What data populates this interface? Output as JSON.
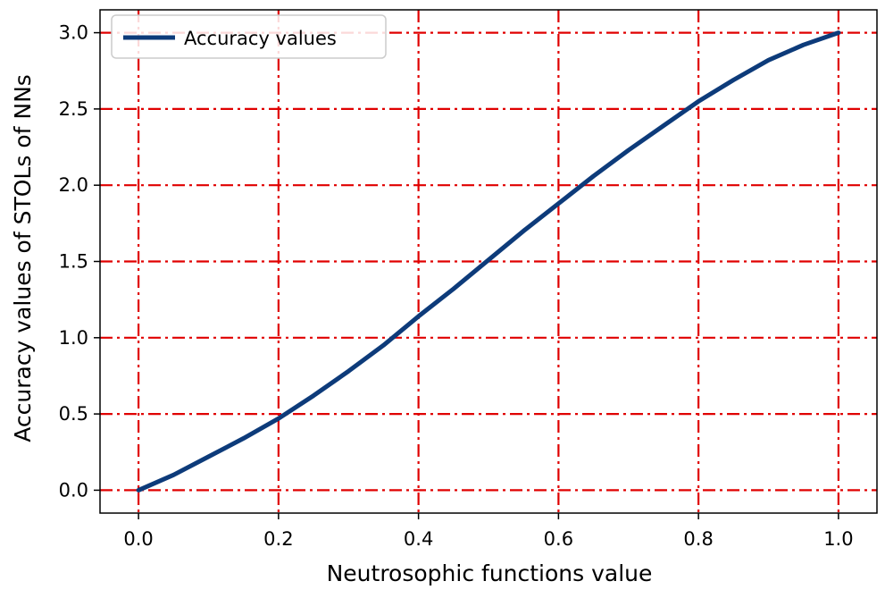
{
  "chart_data": {
    "type": "line",
    "title": "",
    "xlabel": "Neutrosophic functions value",
    "ylabel": "Accuracy values of STOLs of NNs",
    "xlim": [
      -0.055,
      1.055
    ],
    "ylim": [
      -0.15,
      3.15
    ],
    "xticks": [
      "0.0",
      "0.2",
      "0.4",
      "0.6",
      "0.8",
      "1.0"
    ],
    "yticks": [
      "0.0",
      "0.5",
      "1.0",
      "1.5",
      "2.0",
      "2.5",
      "3.0"
    ],
    "grid": true,
    "grid_style": "dash-dot",
    "grid_color": "#e00000",
    "legend_position": "top-left",
    "series": [
      {
        "name": "Accuracy values",
        "color": "#0d3b7a",
        "x": [
          0.0,
          0.05,
          0.1,
          0.15,
          0.2,
          0.25,
          0.3,
          0.35,
          0.4,
          0.45,
          0.5,
          0.55,
          0.6,
          0.65,
          0.7,
          0.75,
          0.8,
          0.85,
          0.9,
          0.95,
          1.0
        ],
        "y": [
          0.0,
          0.1,
          0.22,
          0.34,
          0.47,
          0.62,
          0.78,
          0.95,
          1.14,
          1.32,
          1.51,
          1.7,
          1.88,
          2.06,
          2.23,
          2.39,
          2.55,
          2.69,
          2.82,
          2.92,
          3.0
        ]
      }
    ]
  }
}
